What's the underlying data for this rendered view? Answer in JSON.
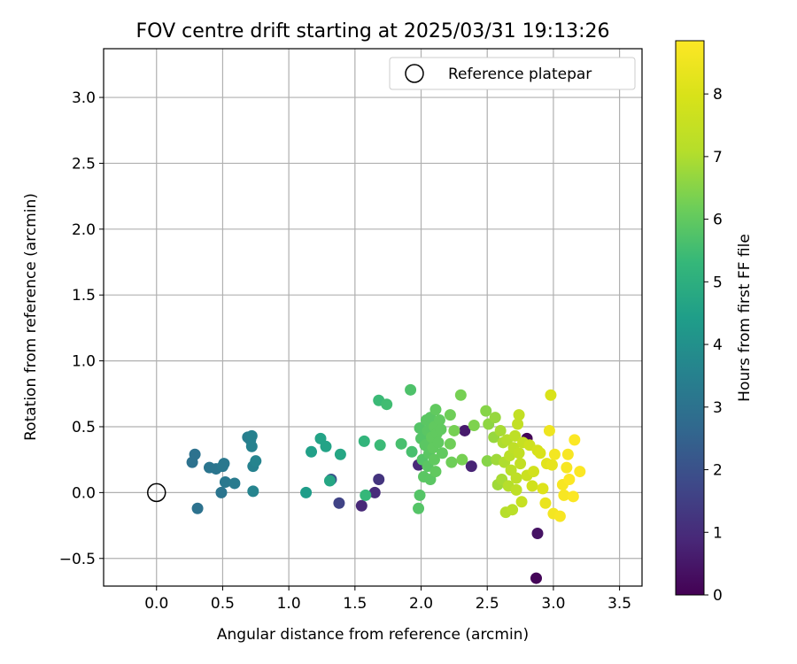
{
  "chart_data": {
    "type": "scatter",
    "title": "FOV centre drift starting at 2025/03/31 19:13:26",
    "xlabel": "Angular distance from reference (arcmin)",
    "ylabel": "Rotation from reference (arcmin)",
    "xlim": [
      -0.4,
      3.67
    ],
    "ylim": [
      -0.71,
      3.37
    ],
    "xticks": [
      0.0,
      0.5,
      1.0,
      1.5,
      2.0,
      2.5,
      3.0,
      3.5
    ],
    "xtick_labels": [
      "0.0",
      "0.5",
      "1.0",
      "1.5",
      "2.0",
      "2.5",
      "3.0",
      "3.5"
    ],
    "yticks": [
      -0.5,
      0.0,
      0.5,
      1.0,
      1.5,
      2.0,
      2.5,
      3.0
    ],
    "ytick_labels": [
      "−0.5",
      "0.0",
      "0.5",
      "1.0",
      "1.5",
      "2.0",
      "2.5",
      "3.0"
    ],
    "grid": true,
    "legend": {
      "placement": "top-right",
      "entries": [
        "Reference platepar"
      ]
    },
    "colorbar": {
      "label": "Hours from first FF file",
      "range": [
        0,
        8.85
      ],
      "ticks": [
        0,
        1,
        2,
        3,
        4,
        5,
        6,
        7,
        8
      ],
      "tick_labels": [
        "0",
        "1",
        "2",
        "3",
        "4",
        "5",
        "6",
        "7",
        "8"
      ],
      "colormap": "viridis"
    },
    "reference_point": {
      "x": 0.0,
      "y": 0.0
    },
    "points": [
      {
        "x": 2.8,
        "y": 0.41,
        "h": 0.1
      },
      {
        "x": 2.87,
        "y": -0.65,
        "h": 0.1
      },
      {
        "x": 2.88,
        "y": -0.31,
        "h": 0.4
      },
      {
        "x": 2.33,
        "y": 0.47,
        "h": 0.6
      },
      {
        "x": 2.38,
        "y": 0.2,
        "h": 0.8
      },
      {
        "x": 1.98,
        "y": 0.21,
        "h": 0.9
      },
      {
        "x": 1.55,
        "y": -0.1,
        "h": 0.9
      },
      {
        "x": 1.65,
        "y": 0.0,
        "h": 1.0
      },
      {
        "x": 1.68,
        "y": 0.1,
        "h": 1.2
      },
      {
        "x": 1.38,
        "y": -0.08,
        "h": 1.6
      },
      {
        "x": 1.32,
        "y": 0.1,
        "h": 2.1
      },
      {
        "x": 0.27,
        "y": 0.23,
        "h": 3.0
      },
      {
        "x": 0.29,
        "y": 0.29,
        "h": 3.0
      },
      {
        "x": 0.31,
        "y": -0.12,
        "h": 3.0
      },
      {
        "x": 0.4,
        "y": 0.19,
        "h": 3.1
      },
      {
        "x": 0.45,
        "y": 0.18,
        "h": 3.1
      },
      {
        "x": 0.49,
        "y": 0.0,
        "h": 3.1
      },
      {
        "x": 0.5,
        "y": 0.2,
        "h": 3.2
      },
      {
        "x": 0.51,
        "y": 0.22,
        "h": 3.2
      },
      {
        "x": 0.52,
        "y": 0.08,
        "h": 3.2
      },
      {
        "x": 0.59,
        "y": 0.07,
        "h": 3.3
      },
      {
        "x": 0.69,
        "y": 0.42,
        "h": 3.4
      },
      {
        "x": 0.71,
        "y": 0.4,
        "h": 3.4
      },
      {
        "x": 0.72,
        "y": 0.43,
        "h": 3.5
      },
      {
        "x": 0.72,
        "y": 0.35,
        "h": 3.5
      },
      {
        "x": 0.73,
        "y": 0.2,
        "h": 3.5
      },
      {
        "x": 0.73,
        "y": 0.01,
        "h": 3.6
      },
      {
        "x": 0.75,
        "y": 0.24,
        "h": 3.6
      },
      {
        "x": 1.13,
        "y": 0.0,
        "h": 4.4
      },
      {
        "x": 1.17,
        "y": 0.31,
        "h": 4.5
      },
      {
        "x": 1.24,
        "y": 0.41,
        "h": 4.6
      },
      {
        "x": 1.28,
        "y": 0.35,
        "h": 4.6
      },
      {
        "x": 1.31,
        "y": 0.09,
        "h": 4.7
      },
      {
        "x": 1.39,
        "y": 0.29,
        "h": 4.7
      },
      {
        "x": 1.57,
        "y": 0.39,
        "h": 5.2
      },
      {
        "x": 1.58,
        "y": -0.02,
        "h": 5.3
      },
      {
        "x": 1.68,
        "y": 0.7,
        "h": 5.4
      },
      {
        "x": 1.69,
        "y": 0.36,
        "h": 5.4
      },
      {
        "x": 1.74,
        "y": 0.67,
        "h": 5.5
      },
      {
        "x": 1.85,
        "y": 0.37,
        "h": 5.6
      },
      {
        "x": 1.92,
        "y": 0.78,
        "h": 5.7
      },
      {
        "x": 1.93,
        "y": 0.31,
        "h": 5.6
      },
      {
        "x": 1.98,
        "y": -0.12,
        "h": 5.8
      },
      {
        "x": 1.99,
        "y": -0.02,
        "h": 5.8
      },
      {
        "x": 1.99,
        "y": 0.49,
        "h": 5.8
      },
      {
        "x": 2.0,
        "y": 0.41,
        "h": 5.8
      },
      {
        "x": 2.01,
        "y": 0.25,
        "h": 5.8
      },
      {
        "x": 2.02,
        "y": 0.12,
        "h": 5.9
      },
      {
        "x": 2.03,
        "y": 0.36,
        "h": 5.9
      },
      {
        "x": 2.04,
        "y": 0.55,
        "h": 5.9
      },
      {
        "x": 2.05,
        "y": 0.47,
        "h": 5.9
      },
      {
        "x": 2.05,
        "y": 0.2,
        "h": 5.9
      },
      {
        "x": 2.06,
        "y": 0.3,
        "h": 5.9
      },
      {
        "x": 2.07,
        "y": 0.1,
        "h": 5.9
      },
      {
        "x": 2.07,
        "y": 0.57,
        "h": 5.9
      },
      {
        "x": 2.08,
        "y": 0.42,
        "h": 6.0
      },
      {
        "x": 2.09,
        "y": 0.34,
        "h": 6.0
      },
      {
        "x": 2.1,
        "y": 0.5,
        "h": 6.0
      },
      {
        "x": 2.1,
        "y": 0.25,
        "h": 6.0
      },
      {
        "x": 2.11,
        "y": 0.63,
        "h": 6.0
      },
      {
        "x": 2.11,
        "y": 0.16,
        "h": 6.0
      },
      {
        "x": 2.12,
        "y": 0.45,
        "h": 6.0
      },
      {
        "x": 2.13,
        "y": 0.38,
        "h": 6.0
      },
      {
        "x": 2.14,
        "y": 0.55,
        "h": 6.0
      },
      {
        "x": 2.15,
        "y": 0.48,
        "h": 6.0
      },
      {
        "x": 2.16,
        "y": 0.3,
        "h": 6.0
      },
      {
        "x": 2.22,
        "y": 0.59,
        "h": 6.2
      },
      {
        "x": 2.22,
        "y": 0.37,
        "h": 6.2
      },
      {
        "x": 2.23,
        "y": 0.23,
        "h": 6.2
      },
      {
        "x": 2.25,
        "y": 0.47,
        "h": 6.3
      },
      {
        "x": 2.3,
        "y": 0.74,
        "h": 6.3
      },
      {
        "x": 2.31,
        "y": 0.25,
        "h": 6.3
      },
      {
        "x": 2.4,
        "y": 0.51,
        "h": 6.4
      },
      {
        "x": 2.49,
        "y": 0.62,
        "h": 6.5
      },
      {
        "x": 2.5,
        "y": 0.24,
        "h": 6.5
      },
      {
        "x": 2.51,
        "y": 0.52,
        "h": 6.6
      },
      {
        "x": 2.55,
        "y": 0.42,
        "h": 6.7
      },
      {
        "x": 2.56,
        "y": 0.57,
        "h": 6.7
      },
      {
        "x": 2.57,
        "y": 0.25,
        "h": 6.8
      },
      {
        "x": 2.58,
        "y": 0.06,
        "h": 6.8
      },
      {
        "x": 2.6,
        "y": 0.47,
        "h": 6.9
      },
      {
        "x": 2.61,
        "y": 0.1,
        "h": 6.9
      },
      {
        "x": 2.62,
        "y": 0.38,
        "h": 7.0
      },
      {
        "x": 2.63,
        "y": 0.23,
        "h": 7.0
      },
      {
        "x": 2.64,
        "y": -0.15,
        "h": 7.1
      },
      {
        "x": 2.65,
        "y": 0.4,
        "h": 7.1
      },
      {
        "x": 2.66,
        "y": 0.05,
        "h": 7.1
      },
      {
        "x": 2.67,
        "y": 0.28,
        "h": 7.2
      },
      {
        "x": 2.68,
        "y": 0.17,
        "h": 7.2
      },
      {
        "x": 2.69,
        "y": -0.13,
        "h": 7.2
      },
      {
        "x": 2.7,
        "y": 0.34,
        "h": 7.3
      },
      {
        "x": 2.71,
        "y": 0.43,
        "h": 7.3
      },
      {
        "x": 2.72,
        "y": 0.11,
        "h": 7.3
      },
      {
        "x": 2.72,
        "y": 0.02,
        "h": 7.3
      },
      {
        "x": 2.73,
        "y": 0.52,
        "h": 7.4
      },
      {
        "x": 2.74,
        "y": 0.3,
        "h": 7.4
      },
      {
        "x": 2.74,
        "y": 0.59,
        "h": 7.4
      },
      {
        "x": 2.75,
        "y": 0.22,
        "h": 7.4
      },
      {
        "x": 2.76,
        "y": -0.07,
        "h": 7.5
      },
      {
        "x": 2.77,
        "y": 0.38,
        "h": 7.5
      },
      {
        "x": 2.8,
        "y": 0.13,
        "h": 7.6
      },
      {
        "x": 2.82,
        "y": 0.36,
        "h": 7.7
      },
      {
        "x": 2.84,
        "y": 0.05,
        "h": 7.8
      },
      {
        "x": 2.85,
        "y": 0.16,
        "h": 7.8
      },
      {
        "x": 2.88,
        "y": 0.32,
        "h": 7.9
      },
      {
        "x": 2.9,
        "y": 0.3,
        "h": 8.0
      },
      {
        "x": 2.92,
        "y": 0.03,
        "h": 8.1
      },
      {
        "x": 2.95,
        "y": 0.22,
        "h": 8.2
      },
      {
        "x": 2.98,
        "y": 0.74,
        "h": 8.0
      },
      {
        "x": 2.99,
        "y": 0.21,
        "h": 8.3
      },
      {
        "x": 2.94,
        "y": -0.08,
        "h": 8.4
      },
      {
        "x": 2.97,
        "y": 0.47,
        "h": 8.5
      },
      {
        "x": 3.0,
        "y": -0.16,
        "h": 8.6
      },
      {
        "x": 3.01,
        "y": 0.29,
        "h": 8.6
      },
      {
        "x": 3.05,
        "y": -0.18,
        "h": 8.7
      },
      {
        "x": 3.07,
        "y": 0.06,
        "h": 8.7
      },
      {
        "x": 3.08,
        "y": -0.02,
        "h": 8.7
      },
      {
        "x": 3.1,
        "y": 0.19,
        "h": 8.7
      },
      {
        "x": 3.11,
        "y": 0.29,
        "h": 8.7
      },
      {
        "x": 3.12,
        "y": 0.1,
        "h": 8.8
      },
      {
        "x": 3.15,
        "y": -0.03,
        "h": 8.8
      },
      {
        "x": 3.16,
        "y": 0.4,
        "h": 8.8
      },
      {
        "x": 3.2,
        "y": 0.16,
        "h": 8.8
      }
    ]
  }
}
